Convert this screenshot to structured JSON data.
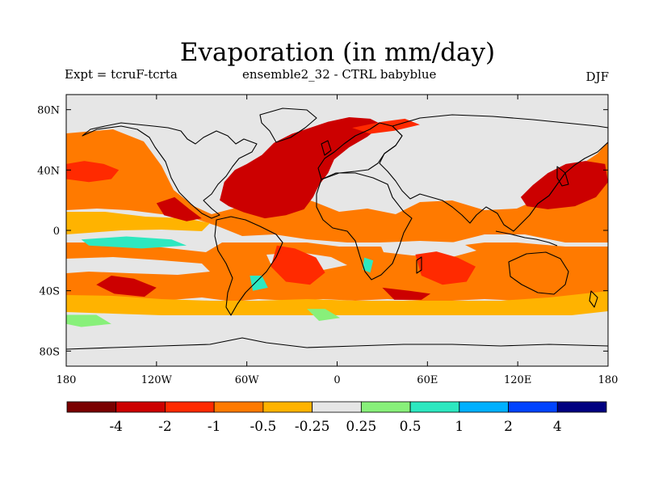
{
  "title": "Evaporation (in mm/day)",
  "experiment": "Expt = tcruF-tcrta",
  "ensemble": "ensemble2_32 - CTRL babyblue",
  "season": "DJF",
  "map": {
    "projection": "cylindrical equidistant",
    "lon_range": [
      -180,
      180
    ],
    "lat_range": [
      -90,
      90
    ],
    "lat_ticks": [
      {
        "value": 80,
        "label": "80N"
      },
      {
        "value": 40,
        "label": "40N"
      },
      {
        "value": 0,
        "label": "0"
      },
      {
        "value": -40,
        "label": "40S"
      },
      {
        "value": -80,
        "label": "80S"
      }
    ],
    "lon_ticks": [
      {
        "value": -180,
        "label": "180"
      },
      {
        "value": -120,
        "label": "120W"
      },
      {
        "value": -60,
        "label": "60W"
      },
      {
        "value": 0,
        "label": "0"
      },
      {
        "value": 60,
        "label": "60E"
      },
      {
        "value": 120,
        "label": "120E"
      },
      {
        "value": 180,
        "label": "180"
      }
    ],
    "background_color": "#e6e6e6",
    "coastline_color": "#000000"
  },
  "colorbar": {
    "colors": [
      "#7a0000",
      "#cc0000",
      "#ff2a00",
      "#ff7a00",
      "#ffb300",
      "#e6e6e6",
      "#88f07a",
      "#2de8c0",
      "#00b0ff",
      "#0044ff",
      "#000080"
    ],
    "labels": [
      "-4",
      "-2",
      "-1",
      "-0.5",
      "-0.25",
      "0.25",
      "0.5",
      "1",
      "2",
      "4"
    ]
  },
  "fields": [
    {
      "name": "north-atlantic-strong-evaporation",
      "level": "-2",
      "color": "#cc0000",
      "points": [
        [
          -78,
          20
        ],
        [
          -75,
          32
        ],
        [
          -68,
          40
        ],
        [
          -60,
          44
        ],
        [
          -50,
          50
        ],
        [
          -42,
          58
        ],
        [
          -30,
          64
        ],
        [
          -18,
          68
        ],
        [
          -6,
          72
        ],
        [
          8,
          75
        ],
        [
          22,
          74
        ],
        [
          30,
          70
        ],
        [
          20,
          62
        ],
        [
          8,
          55
        ],
        [
          -2,
          47
        ],
        [
          -6,
          38
        ],
        [
          -12,
          30
        ],
        [
          -16,
          22
        ],
        [
          -22,
          14
        ],
        [
          -34,
          10
        ],
        [
          -48,
          8
        ],
        [
          -62,
          12
        ],
        [
          -72,
          16
        ]
      ]
    },
    {
      "name": "arctic-barents-evaporation",
      "level": "-1",
      "color": "#ff2a00",
      "points": [
        [
          10,
          68
        ],
        [
          30,
          72
        ],
        [
          45,
          74
        ],
        [
          55,
          70
        ],
        [
          38,
          66
        ],
        [
          22,
          64
        ]
      ]
    },
    {
      "name": "north-pacific-west-evaporation",
      "level": "-2",
      "color": "#cc0000",
      "points": [
        [
          122,
          22
        ],
        [
          130,
          30
        ],
        [
          140,
          38
        ],
        [
          152,
          44
        ],
        [
          165,
          46
        ],
        [
          178,
          44
        ],
        [
          180,
          32
        ],
        [
          172,
          22
        ],
        [
          158,
          16
        ],
        [
          140,
          14
        ],
        [
          126,
          16
        ]
      ]
    },
    {
      "name": "north-pacific-east-evaporation",
      "level": "-1",
      "color": "#ff2a00",
      "points": [
        [
          -180,
          44
        ],
        [
          -168,
          46
        ],
        [
          -155,
          44
        ],
        [
          -145,
          40
        ],
        [
          -150,
          34
        ],
        [
          -165,
          32
        ],
        [
          -180,
          34
        ]
      ]
    },
    {
      "name": "east-pacific-coast-evaporation",
      "level": "-2",
      "color": "#cc0000",
      "points": [
        [
          -120,
          18
        ],
        [
          -108,
          22
        ],
        [
          -98,
          14
        ],
        [
          -90,
          8
        ],
        [
          -100,
          6
        ],
        [
          -115,
          10
        ]
      ]
    },
    {
      "name": "south-atlantic-evaporation",
      "level": "-1",
      "color": "#ff2a00",
      "points": [
        [
          -40,
          -10
        ],
        [
          -28,
          -12
        ],
        [
          -14,
          -18
        ],
        [
          -8,
          -28
        ],
        [
          -18,
          -36
        ],
        [
          -34,
          -34
        ],
        [
          -44,
          -24
        ]
      ]
    },
    {
      "name": "indian-ocean-evaporation",
      "level": "-1",
      "color": "#ff2a00",
      "points": [
        [
          52,
          -16
        ],
        [
          66,
          -14
        ],
        [
          80,
          -18
        ],
        [
          92,
          -24
        ],
        [
          86,
          -34
        ],
        [
          70,
          -36
        ],
        [
          56,
          -30
        ]
      ]
    },
    {
      "name": "southern-indian-ocean-evaporation",
      "level": "-2",
      "color": "#cc0000",
      "points": [
        [
          30,
          -38
        ],
        [
          48,
          -40
        ],
        [
          62,
          -42
        ],
        [
          56,
          -46
        ],
        [
          38,
          -46
        ]
      ]
    },
    {
      "name": "south-pacific-evaporation",
      "level": "-2",
      "color": "#cc0000",
      "points": [
        [
          -150,
          -30
        ],
        [
          -135,
          -32
        ],
        [
          -120,
          -38
        ],
        [
          -128,
          -44
        ],
        [
          -148,
          -42
        ],
        [
          -160,
          -36
        ]
      ]
    },
    {
      "name": "southern-ocean-moistening",
      "level": "0.5",
      "color": "#88f07a",
      "points": [
        [
          -180,
          -56
        ],
        [
          -160,
          -56
        ],
        [
          -150,
          -62
        ],
        [
          -170,
          -64
        ],
        [
          -180,
          -62
        ]
      ]
    },
    {
      "name": "southern-ocean-moistening-atlantic",
      "level": "0.5",
      "color": "#88f07a",
      "points": [
        [
          -20,
          -52
        ],
        [
          -8,
          -52
        ],
        [
          2,
          -58
        ],
        [
          -12,
          -60
        ]
      ]
    },
    {
      "name": "south-atlantic-reduced-evaporation",
      "level": "1",
      "color": "#2de8c0",
      "points": [
        [
          -58,
          -30
        ],
        [
          -50,
          -30
        ],
        [
          -46,
          -38
        ],
        [
          -56,
          -40
        ]
      ]
    },
    {
      "name": "east-pacific-reduced-evaporation",
      "level": "1",
      "color": "#2de8c0",
      "points": [
        [
          -170,
          -6
        ],
        [
          -140,
          -4
        ],
        [
          -110,
          -6
        ],
        [
          -100,
          -10
        ],
        [
          -130,
          -12
        ],
        [
          -165,
          -10
        ]
      ]
    },
    {
      "name": "madagascar-reduced-evaporation",
      "level": "1",
      "color": "#2de8c0",
      "points": [
        [
          18,
          -18
        ],
        [
          24,
          -20
        ],
        [
          22,
          -28
        ],
        [
          17,
          -26
        ]
      ]
    }
  ]
}
